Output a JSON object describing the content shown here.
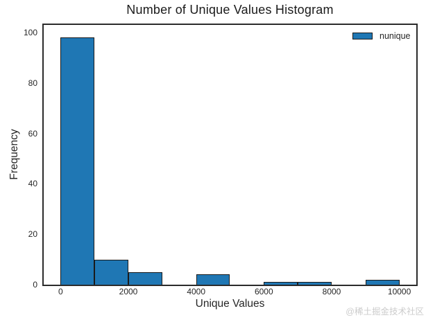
{
  "figure": {
    "watermark": "@稀土掘金技术社区"
  },
  "chart_data": {
    "type": "histogram",
    "title": "Number of Unique Values Histogram",
    "xlabel": "Unique Values",
    "ylabel": "Frequency",
    "bin_edges": [
      0,
      1000,
      2000,
      3000,
      4000,
      5000,
      6000,
      7000,
      8000,
      9000,
      10000
    ],
    "counts": [
      98,
      10,
      5,
      0,
      4,
      0,
      1,
      1,
      0,
      2
    ],
    "xticks": [
      0,
      2000,
      4000,
      6000,
      8000,
      10000
    ],
    "yticks": [
      0,
      20,
      40,
      60,
      80,
      100
    ],
    "xlim": [
      -500,
      10500
    ],
    "ylim": [
      0,
      103
    ],
    "grid": false,
    "legend": {
      "label": "nunique",
      "position": "upper right",
      "frame": false
    },
    "colors": {
      "bar_fill": "#1f77b4",
      "bar_edge": "#1a1a1a",
      "spine": "#2b2b2b",
      "text": "#262626",
      "watermark": "#cccccc"
    }
  }
}
